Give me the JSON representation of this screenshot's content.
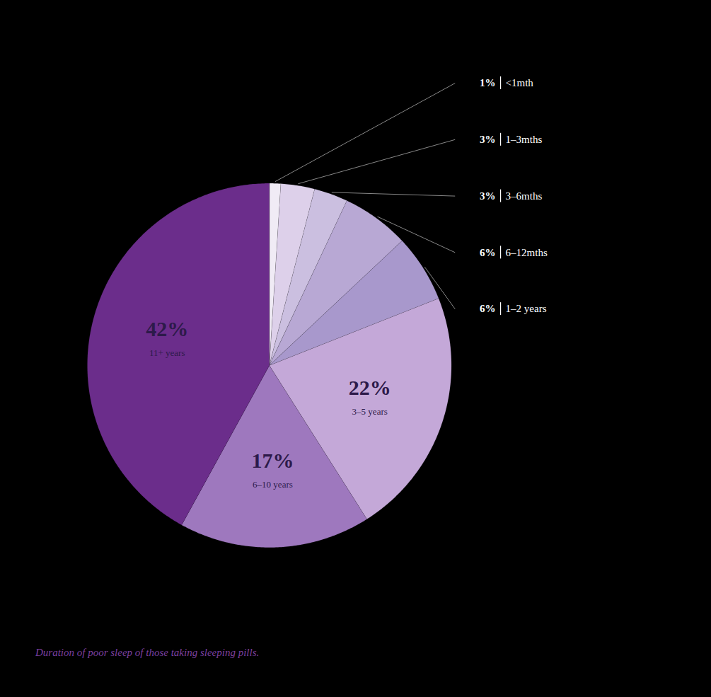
{
  "chart_data": {
    "type": "pie",
    "categories": [
      "<1mth",
      "1–3mths",
      "3–6mths",
      "6–12mths",
      "1–2 years",
      "3–5 years",
      "6–10 years",
      "11+ years"
    ],
    "values": [
      1,
      3,
      3,
      6,
      6,
      22,
      17,
      42
    ],
    "value_labels": [
      "1%",
      "3%",
      "3%",
      "6%",
      "6%",
      "22%",
      "17%",
      "42%"
    ],
    "colors": [
      "#f0ebf5",
      "#ddd0ea",
      "#cbbfe0",
      "#b8a8d4",
      "#a898cc",
      "#c4a8d8",
      "#9e78be",
      "#6b2d8b"
    ],
    "data_labels": true,
    "caption": "Duration of poor sleep of those taking sleeping pills."
  }
}
